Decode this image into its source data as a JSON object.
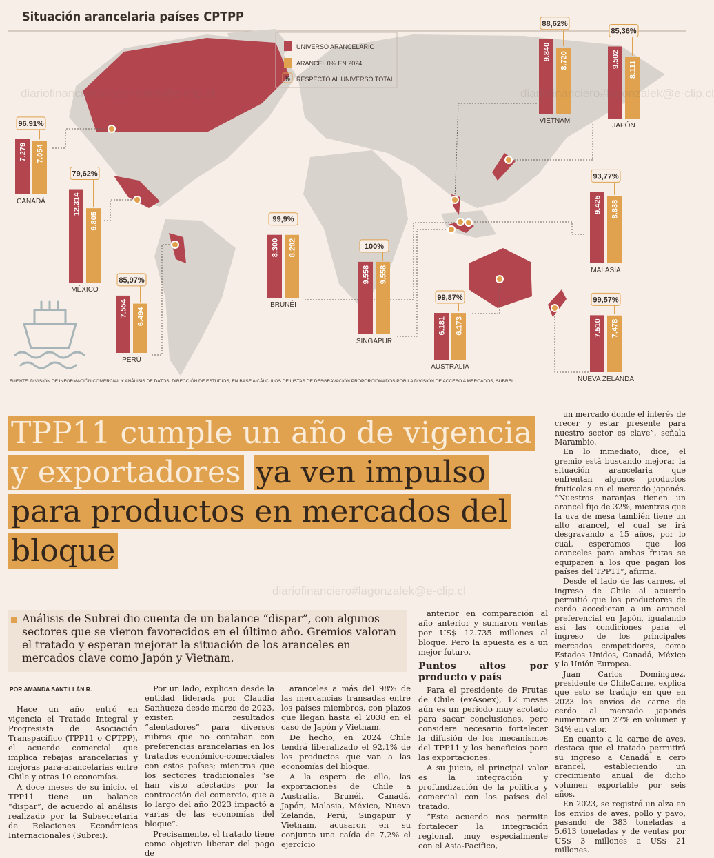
{
  "watermark": "diariofinanciero#lagonzalek@e-clip.cl",
  "infographic": {
    "title": "Situación arancelaria países CPTPP",
    "legend": {
      "universe": "UNIVERSO ARANCELARIO",
      "zero": "ARANCEL 0% EN 2024",
      "share_symbol": "%",
      "share": "RESPECTO AL UNIVERSO TOTAL"
    },
    "countries": [
      {
        "name": "CANADÁ",
        "universe": 7279,
        "universe_label": "7.279",
        "zero": 7054,
        "zero_label": "7.054",
        "share": "96,91%"
      },
      {
        "name": "MÉXICO",
        "universe": 12314,
        "universe_label": "12.314",
        "zero": 9805,
        "zero_label": "9.805",
        "share": "79,62%"
      },
      {
        "name": "PERÚ",
        "universe": 7554,
        "universe_label": "7.554",
        "zero": 6494,
        "zero_label": "6.494",
        "share": "85,97%"
      },
      {
        "name": "BRUNÉI",
        "universe": 8300,
        "universe_label": "8.300",
        "zero": 8292,
        "zero_label": "8.292",
        "share": "99,9%"
      },
      {
        "name": "SINGAPUR",
        "universe": 9558,
        "universe_label": "9.558",
        "zero": 9558,
        "zero_label": "9.558",
        "share": "100%"
      },
      {
        "name": "AUSTRALIA",
        "universe": 6181,
        "universe_label": "6.181",
        "zero": 6173,
        "zero_label": "6.173",
        "share": "99,87%"
      },
      {
        "name": "VIETNAM",
        "universe": 9840,
        "universe_label": "9.840",
        "zero": 8720,
        "zero_label": "8.720",
        "share": "88,62%"
      },
      {
        "name": "JAPÓN",
        "universe": 9502,
        "universe_label": "9.502",
        "zero": 8111,
        "zero_label": "8.111",
        "share": "85,36%"
      },
      {
        "name": "MALASIA",
        "universe": 9425,
        "universe_label": "9.425",
        "zero": 8838,
        "zero_label": "8.838",
        "share": "93,77%"
      },
      {
        "name": "NUEVA ZELANDA",
        "universe": 7510,
        "universe_label": "7.510",
        "zero": 7478,
        "zero_label": "7.478",
        "share": "99,57%"
      }
    ],
    "source": "FUENTE: DIVISIÓN DE INFORMACIÓN COMERCIAL Y ANÁLISIS DE DATOS, DIRECCIÓN DE ESTUDIOS, EN BASE A CÁLCULOS DE LISTAS DE DESGRAVACIÓN PROPORCIONADOS POR LA DIVISIÓN DE ACCESO A MERCADOS, SUBREI."
  },
  "article": {
    "headline": [
      "TPP11 cumple un año de vigencia y exportadores",
      "ya ven impulso para productos en mercados del bloque"
    ],
    "lead": "Análisis de Subrei dio cuenta de un balance “dispar”, con algunos sectores que se vieron favorecidos en el último año. Gremios valoran el tratado y esperan mejorar la situación de los aranceles en mercados clave como Japón y Vietnam.",
    "byline": "POR AMANDA SANTILLÁN R.",
    "columns": [
      [
        {
          "text": "Hace un año entró en vigencia el Tratado Integral y Progresista de Asociación Transpacífico (TPP11 o CPTPP), el acuerdo comercial que implica rebajas arancelarias y mejoras para-arancelarias entre Chile y otras 10 economías."
        },
        {
          "text": "A doce meses de su inicio, el TPP11 tiene un balance “dispar”, de acuerdo al análisis realizado por la Subsecretaría de Relaciones Económicas Internacionales (Subrei)."
        }
      ],
      [
        {
          "text": "Por un lado, explican desde la entidad liderada por Claudia Sanhueza desde marzo de 2023, existen resultados “alentadores” para diversos rubros que no contaban con preferencias arancelarias en los tratados económico-comerciales con estos países; mientras que los sectores tradicionales “se han visto afectados por la contracción del comercio, que a lo largo del año 2023 impactó a varias de las economías del bloque”."
        },
        {
          "text": "Precisamente, el tratado tiene como objetivo liberar del pago de"
        }
      ],
      [
        {
          "text": "aranceles a más del 98% de las mercancías transadas entre los países miembros, con plazos que llegan hasta el 2038 en el caso de Japón y Vietnam."
        },
        {
          "text": "De hecho, en 2024 Chile tendrá liberalizado el 92,1% de los productos que van a las economías del bloque."
        },
        {
          "text": "A la espera de ello, las exportaciones de Chile a Australia, Brunéi, Canadá, Japón, Malasia, México, Nueva Zelanda, Perú, Singapur y Vietnam, acusaron en su conjunto una caída de 7,2% el ejercicio"
        }
      ],
      [
        {
          "text": "anterior en comparación al año anterior y sumaron ventas por US$ 12.735 millones al bloque. Pero la apuesta es a un mejor futuro."
        },
        {
          "heading": "Puntos altos por producto y país"
        },
        {
          "text": "Para el presidente de Frutas de Chile (exAsoex), 12 meses aún es un período muy acotado para sacar conclusiones, pero considera necesario fortalecer la difusión de los mecanismos del TPP11 y los beneficios para las exportaciones."
        },
        {
          "text": "A su juicio, el principal valor es la integración y profundización de la política y comercial con los países del tratado."
        },
        {
          "text": "“Este acuerdo nos permite fortalecer la integración regional, muy especialmente con el Asia-Pacífico,"
        }
      ],
      [
        {
          "text": "un mercado donde el interés de crecer y estar presente para nuestro sector es clave”, señala Marambio."
        },
        {
          "text": "En lo inmediato, dice, el gremio está buscando mejorar la situación arancelaria que enfrentan algunos productos frutícolas en el mercado japonés. “Nuestras naranjas tienen un arancel fijo de 32%, mientras que la uva de mesa también tiene un alto arancel, el cual se irá desgravando a 15 años, por lo cual, esperamos que los aranceles para ambas frutas se equiparen a los que pagan los países del TPP11”, afirma."
        },
        {
          "text": "Desde el lado de las carnes, el ingreso de Chile al acuerdo permitió que los productores de cerdo accedieran a un arancel preferencial en Japón, igualando así las condiciones para el ingreso de los principales mercados competidores, como Estados Unidos, Canadá, México y la Unión Europea."
        },
        {
          "text": "Juan Carlos Domínguez, presidente de ChileCarne, explica que esto se tradujo en que en 2023 los envíos de carne de cerdo al mercado japonés aumentara un 27% en volumen y 34% en valor."
        },
        {
          "text": "En cuanto a la carne de aves, destaca que el tratado permitirá su ingreso a Canadá a cero arancel, estableciendo un crecimiento anual de dicho volumen exportable por seis años."
        },
        {
          "text": "En 2023, se registró un alza en los envíos de aves, pollo y pavo, pasando de 383 toneladas a 5.613 toneladas y de ventas por US$ 3 millones a US$ 21 millones."
        }
      ]
    ]
  }
}
